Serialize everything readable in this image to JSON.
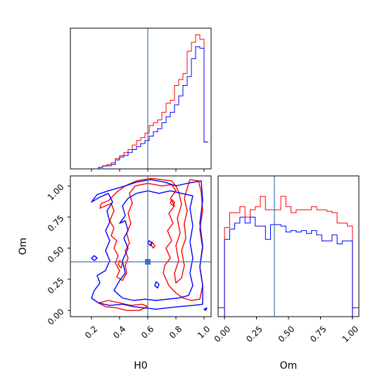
{
  "colors": {
    "series_red": "#ff0000",
    "series_blue": "#0000ff",
    "truth": "#3a78b5",
    "axes": "#000000"
  },
  "chart_data": [
    {
      "panel": "H0-marginal",
      "type": "step-histogram",
      "xlim": [
        0.05,
        1.05
      ],
      "ylabel_shown": false,
      "yticks_shown": false,
      "x_tick_labels_shown": false,
      "truth_line_x": 0.6,
      "bin_edges": [
        0.25,
        0.28,
        0.31,
        0.34,
        0.37,
        0.4,
        0.43,
        0.46,
        0.49,
        0.52,
        0.55,
        0.58,
        0.61,
        0.64,
        0.67,
        0.7,
        0.73,
        0.76,
        0.79,
        0.82,
        0.85,
        0.88,
        0.91,
        0.94,
        0.97,
        1.0
      ],
      "series": [
        {
          "name": "",
          "color": "#ff0000",
          "values": [
            1,
            2,
            3,
            4,
            7,
            9,
            11,
            13,
            16,
            19,
            21,
            24,
            29,
            31,
            33,
            38,
            44,
            46,
            56,
            60,
            64,
            79,
            85,
            90,
            87,
            18
          ]
        },
        {
          "name": "",
          "color": "#0000ff",
          "values": [
            1,
            2,
            2,
            3,
            6,
            8,
            9,
            11,
            13,
            15,
            17,
            19,
            22,
            25,
            27,
            31,
            35,
            38,
            43,
            49,
            56,
            62,
            74,
            82,
            81,
            18
          ]
        }
      ]
    },
    {
      "panel": "H0-Om-contours",
      "type": "contour",
      "xlabel": "H0",
      "ylabel": "Om",
      "xlim": [
        0.05,
        1.05
      ],
      "ylim": [
        -0.05,
        1.08
      ],
      "xticks": [
        0.2,
        0.4,
        0.6,
        0.8,
        1.0
      ],
      "xtick_labels": [
        "0.2",
        "0.4",
        "0.6",
        "0.8",
        "1.0"
      ],
      "yticks": [
        0.0,
        0.25,
        0.5,
        0.75,
        1.0
      ],
      "ytick_labels": [
        "0.00",
        "0.25",
        "0.50",
        "0.75",
        "1.00"
      ],
      "truth": {
        "x": 0.6,
        "y": 0.39
      },
      "series": [
        {
          "name": "",
          "color": "#ff0000",
          "contours": [
            [
              [
                0.26,
                0.82
              ],
              [
                0.3,
                0.84
              ],
              [
                0.34,
                0.86
              ],
              [
                0.36,
                0.8
              ],
              [
                0.33,
                0.72
              ],
              [
                0.36,
                0.66
              ],
              [
                0.34,
                0.6
              ],
              [
                0.38,
                0.56
              ],
              [
                0.36,
                0.5
              ],
              [
                0.39,
                0.44
              ],
              [
                0.37,
                0.38
              ],
              [
                0.4,
                0.32
              ],
              [
                0.38,
                0.27
              ],
              [
                0.42,
                0.24
              ],
              [
                0.45,
                0.3
              ],
              [
                0.44,
                0.36
              ],
              [
                0.46,
                0.42
              ],
              [
                0.44,
                0.48
              ],
              [
                0.47,
                0.54
              ],
              [
                0.45,
                0.62
              ],
              [
                0.48,
                0.7
              ],
              [
                0.46,
                0.78
              ],
              [
                0.49,
                0.86
              ],
              [
                0.47,
                0.94
              ],
              [
                0.51,
                1.0
              ],
              [
                0.6,
                1.02
              ],
              [
                0.7,
                1.0
              ],
              [
                0.77,
                1.01
              ],
              [
                0.8,
                0.96
              ],
              [
                0.76,
                0.9
              ],
              [
                0.79,
                0.84
              ],
              [
                0.75,
                0.78
              ],
              [
                0.78,
                0.7
              ],
              [
                0.74,
                0.64
              ],
              [
                0.77,
                0.56
              ],
              [
                0.73,
                0.5
              ],
              [
                0.76,
                0.42
              ],
              [
                0.72,
                0.36
              ],
              [
                0.71,
                0.3
              ],
              [
                0.75,
                0.2
              ],
              [
                0.8,
                0.14
              ],
              [
                0.85,
                0.1
              ],
              [
                0.91,
                0.08
              ],
              [
                0.97,
                0.09
              ],
              [
                0.99,
                0.2
              ],
              [
                0.97,
                0.35
              ],
              [
                0.99,
                0.5
              ],
              [
                0.97,
                0.65
              ],
              [
                0.99,
                0.8
              ],
              [
                0.98,
                0.95
              ],
              [
                0.96,
                1.04
              ],
              [
                0.9,
                1.05
              ],
              [
                0.88,
                0.98
              ],
              [
                0.86,
                0.9
              ],
              [
                0.88,
                0.8
              ],
              [
                0.86,
                0.7
              ],
              [
                0.87,
                0.58
              ],
              [
                0.84,
                0.48
              ],
              [
                0.86,
                0.36
              ],
              [
                0.84,
                0.26
              ],
              [
                0.8,
                0.22
              ],
              [
                0.79,
                0.3
              ],
              [
                0.82,
                0.4
              ],
              [
                0.8,
                0.52
              ],
              [
                0.83,
                0.62
              ],
              [
                0.81,
                0.74
              ],
              [
                0.84,
                0.85
              ],
              [
                0.82,
                0.95
              ],
              [
                0.8,
                1.0
              ],
              [
                0.77,
                1.04
              ],
              [
                0.7,
                1.05
              ],
              [
                0.62,
                1.06
              ],
              [
                0.52,
                1.04
              ],
              [
                0.44,
                1.0
              ],
              [
                0.38,
                0.95
              ],
              [
                0.32,
                0.88
              ],
              [
                0.27,
                0.86
              ],
              [
                0.26,
                0.82
              ]
            ],
            [
              [
                0.25,
                0.06
              ],
              [
                0.3,
                0.03
              ],
              [
                0.38,
                0.02
              ],
              [
                0.45,
                0.0
              ],
              [
                0.54,
                0.0
              ],
              [
                0.6,
                0.03
              ],
              [
                0.56,
                0.05
              ],
              [
                0.48,
                0.04
              ],
              [
                0.4,
                0.06
              ],
              [
                0.32,
                0.08
              ],
              [
                0.25,
                0.06
              ]
            ],
            [
              [
                0.4,
                0.4
              ],
              [
                0.42,
                0.38
              ],
              [
                0.41,
                0.34
              ],
              [
                0.39,
                0.37
              ],
              [
                0.4,
                0.4
              ]
            ],
            [
              [
                0.63,
                0.55
              ],
              [
                0.65,
                0.52
              ],
              [
                0.64,
                0.5
              ],
              [
                0.62,
                0.53
              ],
              [
                0.63,
                0.55
              ]
            ],
            [
              [
                0.77,
                0.89
              ],
              [
                0.79,
                0.87
              ],
              [
                0.78,
                0.84
              ],
              [
                0.76,
                0.86
              ],
              [
                0.77,
                0.89
              ]
            ]
          ]
        },
        {
          "name": "",
          "color": "#0000ff",
          "contours": [
            [
              [
                0.2,
                0.87
              ],
              [
                0.26,
                0.91
              ],
              [
                0.32,
                0.94
              ],
              [
                0.35,
                0.87
              ],
              [
                0.31,
                0.8
              ],
              [
                0.33,
                0.71
              ],
              [
                0.3,
                0.64
              ],
              [
                0.33,
                0.56
              ],
              [
                0.3,
                0.48
              ],
              [
                0.33,
                0.4
              ],
              [
                0.3,
                0.32
              ],
              [
                0.24,
                0.28
              ],
              [
                0.26,
                0.22
              ],
              [
                0.22,
                0.16
              ],
              [
                0.2,
                0.1
              ],
              [
                0.25,
                0.06
              ],
              [
                0.33,
                0.04
              ],
              [
                0.42,
                0.05
              ],
              [
                0.5,
                0.03
              ],
              [
                0.58,
                0.02
              ],
              [
                0.66,
                0.01
              ],
              [
                0.74,
                0.02
              ],
              [
                0.82,
                0.03
              ],
              [
                0.92,
                0.04
              ],
              [
                0.99,
                0.05
              ],
              [
                0.99,
                0.2
              ],
              [
                0.97,
                0.35
              ],
              [
                0.99,
                0.52
              ],
              [
                0.97,
                0.7
              ],
              [
                0.99,
                0.88
              ],
              [
                0.98,
                1.04
              ],
              [
                0.88,
                1.02
              ],
              [
                0.8,
                1.0
              ],
              [
                0.72,
                1.03
              ],
              [
                0.62,
                1.05
              ],
              [
                0.52,
                1.03
              ],
              [
                0.44,
                1.0
              ],
              [
                0.38,
                0.98
              ],
              [
                0.32,
                0.96
              ],
              [
                0.24,
                0.93
              ],
              [
                0.2,
                0.87
              ]
            ],
            [
              [
                0.4,
                0.7
              ],
              [
                0.44,
                0.72
              ],
              [
                0.46,
                0.64
              ],
              [
                0.43,
                0.58
              ],
              [
                0.46,
                0.5
              ],
              [
                0.42,
                0.4
              ],
              [
                0.44,
                0.3
              ],
              [
                0.4,
                0.24
              ],
              [
                0.36,
                0.16
              ],
              [
                0.42,
                0.1
              ],
              [
                0.5,
                0.08
              ],
              [
                0.58,
                0.09
              ],
              [
                0.66,
                0.08
              ],
              [
                0.74,
                0.09
              ],
              [
                0.82,
                0.1
              ],
              [
                0.89,
                0.12
              ],
              [
                0.92,
                0.2
              ],
              [
                0.9,
                0.3
              ],
              [
                0.92,
                0.42
              ],
              [
                0.9,
                0.55
              ],
              [
                0.92,
                0.68
              ],
              [
                0.9,
                0.82
              ],
              [
                0.92,
                0.92
              ],
              [
                0.84,
                0.94
              ],
              [
                0.76,
                0.96
              ],
              [
                0.68,
                0.94
              ],
              [
                0.6,
                0.96
              ],
              [
                0.52,
                0.94
              ],
              [
                0.46,
                0.9
              ],
              [
                0.42,
                0.84
              ],
              [
                0.44,
                0.76
              ],
              [
                0.4,
                0.7
              ]
            ],
            [
              [
                0.22,
                0.44
              ],
              [
                0.24,
                0.42
              ],
              [
                0.22,
                0.4
              ],
              [
                0.2,
                0.42
              ],
              [
                0.22,
                0.44
              ]
            ],
            [
              [
                0.61,
                0.56
              ],
              [
                0.63,
                0.54
              ],
              [
                0.62,
                0.52
              ],
              [
                0.6,
                0.54
              ],
              [
                0.61,
                0.56
              ]
            ],
            [
              [
                0.66,
                0.23
              ],
              [
                0.68,
                0.21
              ],
              [
                0.67,
                0.18
              ],
              [
                0.65,
                0.2
              ],
              [
                0.66,
                0.23
              ]
            ],
            [
              [
                1.0,
                0.01
              ],
              [
                1.02,
                0.02
              ],
              [
                1.01,
                0.0
              ],
              [
                1.0,
                0.01
              ]
            ]
          ]
        }
      ]
    },
    {
      "panel": "Om-marginal",
      "type": "step-histogram",
      "xlabel": "Om",
      "xlim": [
        -0.05,
        1.05
      ],
      "xticks": [
        0.0,
        0.25,
        0.5,
        0.75,
        1.0
      ],
      "xtick_labels": [
        "0.00",
        "0.25",
        "0.50",
        "0.75",
        "1.00"
      ],
      "ylabel_shown": false,
      "yticks_shown": false,
      "truth_line_x": 0.39,
      "bin_edges": [
        0.0,
        0.04,
        0.08,
        0.12,
        0.16,
        0.2,
        0.24,
        0.28,
        0.32,
        0.36,
        0.4,
        0.44,
        0.48,
        0.52,
        0.56,
        0.6,
        0.64,
        0.68,
        0.72,
        0.76,
        0.8,
        0.84,
        0.88,
        0.92,
        0.96,
        1.0
      ],
      "series": [
        {
          "name": "",
          "color": "#ff0000",
          "values": [
            60,
            70,
            70,
            74,
            67,
            72,
            74,
            81,
            72,
            72,
            72,
            81,
            74,
            70,
            72,
            72,
            72,
            74,
            72,
            72,
            71,
            70,
            63,
            63,
            61,
            0
          ]
        },
        {
          "name": "",
          "color": "#0000ff",
          "values": [
            52,
            59,
            63,
            67,
            63,
            67,
            61,
            61,
            52,
            62,
            62,
            61,
            57,
            58,
            57,
            58,
            56,
            58,
            55,
            51,
            51,
            55,
            49,
            51,
            51,
            0
          ]
        }
      ]
    }
  ]
}
